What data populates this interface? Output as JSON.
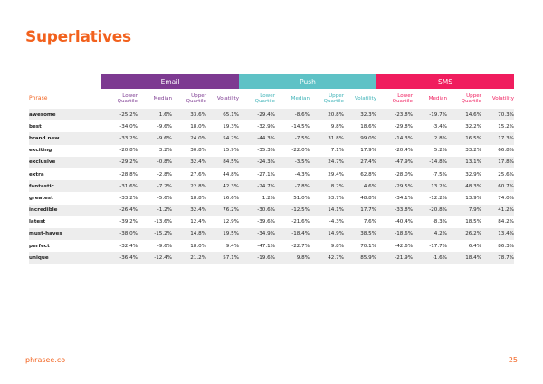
{
  "title": "Superlatives",
  "groups": {
    "email": "Email",
    "push": "Push",
    "sms": "SMS"
  },
  "columns": {
    "phrase": "Phrase",
    "lower_quartile": "Lower Quartile",
    "median": "Median",
    "upper_quartile": "Upper Quartile",
    "volatility": "Volatility"
  },
  "rows": [
    {
      "phrase": "awesome",
      "values": [
        "-25.2%",
        "1.6%",
        "33.6%",
        "65.1%",
        "-29.4%",
        "-8.6%",
        "20.8%",
        "32.3%",
        "-23.8%",
        "-19.7%",
        "14.6%",
        "70.3%"
      ]
    },
    {
      "phrase": "best",
      "values": [
        "-34.0%",
        "-9.6%",
        "18.0%",
        "19.3%",
        "-32.9%",
        "-14.5%",
        "9.8%",
        "18.6%",
        "-29.8%",
        "-3.4%",
        "32.2%",
        "15.2%"
      ]
    },
    {
      "phrase": "brand new",
      "values": [
        "-33.2%",
        "-9.6%",
        "24.0%",
        "54.2%",
        "-44.3%",
        "-7.5%",
        "31.8%",
        "99.0%",
        "-14.3%",
        "2.8%",
        "16.5%",
        "17.3%"
      ]
    },
    {
      "phrase": "exciting",
      "values": [
        "-20.8%",
        "3.2%",
        "30.8%",
        "15.9%",
        "-35.3%",
        "-22.0%",
        "7.1%",
        "17.9%",
        "-20.4%",
        "5.2%",
        "33.2%",
        "66.8%"
      ]
    },
    {
      "phrase": "exclusive",
      "values": [
        "-29.2%",
        "-0.8%",
        "32.4%",
        "84.5%",
        "-24.3%",
        "-3.5%",
        "24.7%",
        "27.4%",
        "-47.9%",
        "-14.8%",
        "13.1%",
        "17.8%"
      ]
    },
    {
      "phrase": "extra",
      "values": [
        "-28.8%",
        "-2.8%",
        "27.6%",
        "44.8%",
        "-27.1%",
        "-4.3%",
        "29.4%",
        "62.8%",
        "-28.0%",
        "-7.5%",
        "32.9%",
        "25.6%"
      ]
    },
    {
      "phrase": "fantastic",
      "values": [
        "-31.6%",
        "-7.2%",
        "22.8%",
        "42.3%",
        "-24.7%",
        "-7.8%",
        "8.2%",
        "4.6%",
        "-29.5%",
        "13.2%",
        "48.3%",
        "60.7%"
      ]
    },
    {
      "phrase": "greatest",
      "values": [
        "-33.2%",
        "-5.6%",
        "18.8%",
        "16.6%",
        "1.2%",
        "51.0%",
        "53.7%",
        "48.8%",
        "-34.1%",
        "-12.2%",
        "13.9%",
        "74.0%"
      ]
    },
    {
      "phrase": "incredible",
      "values": [
        "-26.4%",
        "-1.2%",
        "32.4%",
        "76.2%",
        "-30.6%",
        "-12.5%",
        "14.1%",
        "17.7%",
        "-33.8%",
        "-20.8%",
        "7.9%",
        "41.2%"
      ]
    },
    {
      "phrase": "latest",
      "values": [
        "-39.2%",
        "-13.6%",
        "12.4%",
        "12.9%",
        "-39.6%",
        "-21.6%",
        "-4.3%",
        "7.6%",
        "-40.4%",
        "-8.3%",
        "18.5%",
        "84.2%"
      ]
    },
    {
      "phrase": "must-haves",
      "values": [
        "-38.0%",
        "-15.2%",
        "14.8%",
        "19.5%",
        "-34.9%",
        "-18.4%",
        "14.9%",
        "38.5%",
        "-18.6%",
        "4.2%",
        "26.2%",
        "13.4%"
      ]
    },
    {
      "phrase": "perfect",
      "values": [
        "-32.4%",
        "-9.6%",
        "18.0%",
        "9.4%",
        "-47.1%",
        "-22.7%",
        "9.8%",
        "70.1%",
        "-42.6%",
        "-17.7%",
        "6.4%",
        "86.3%"
      ]
    },
    {
      "phrase": "unique",
      "values": [
        "-36.4%",
        "-12.4%",
        "21.2%",
        "57.1%",
        "-19.6%",
        "9.8%",
        "42.7%",
        "85.9%",
        "-21.9%",
        "-1.6%",
        "18.4%",
        "78.7%"
      ]
    }
  ],
  "footer": {
    "brand": "phrasee.co",
    "page_number": "25"
  },
  "colors": {
    "accent": "#f2611d",
    "email": "#7d3a91",
    "push": "#5ec2c6",
    "sms": "#f01d5e"
  }
}
